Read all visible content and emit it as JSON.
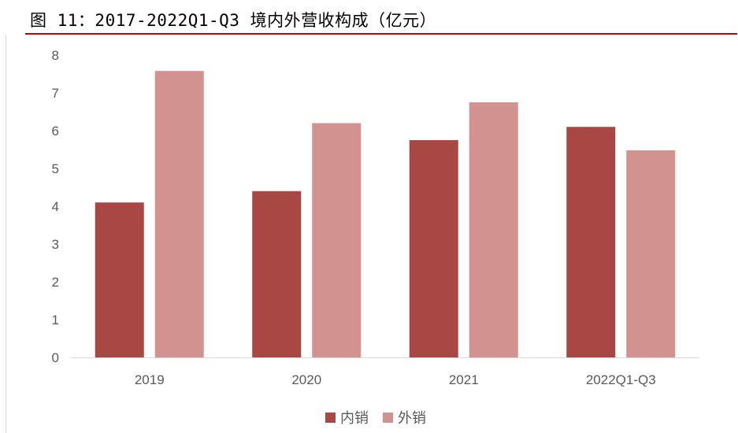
{
  "title": "图 11：2017-2022Q1-Q3 境内外营收构成（亿元）",
  "chart_data": {
    "type": "bar",
    "title": "图 11：2017-2022Q1-Q3 境内外营收构成（亿元）",
    "categories": [
      "2019",
      "2020",
      "2021",
      "2022Q1-Q3"
    ],
    "series": [
      {
        "name": "内销",
        "color": "#a84743",
        "values": [
          4.1,
          4.4,
          5.75,
          6.1
        ]
      },
      {
        "name": "外销",
        "color": "#d29390",
        "values": [
          7.58,
          6.2,
          6.75,
          5.48
        ]
      }
    ],
    "ylim": [
      0,
      8
    ],
    "yticks": [
      0,
      1,
      2,
      3,
      4,
      5,
      6,
      7,
      8
    ],
    "grid": false,
    "legend": "bottom-center",
    "xlabel": "",
    "ylabel": ""
  }
}
